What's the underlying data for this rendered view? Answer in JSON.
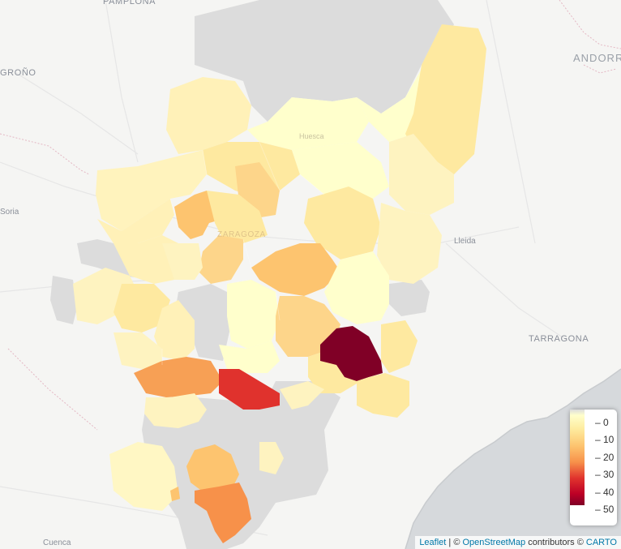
{
  "map": {
    "cities": {
      "pamplona": "PAMPLONA",
      "logrono": "GROÑO",
      "andorra": "ANDORR",
      "soria": "Soria",
      "lleida": "Lleida",
      "tarragona": "TARRAGONA",
      "cuenca": "Cuenca",
      "huesca": "Huesca",
      "zaragoza": "ZARAGOZA"
    },
    "colors": {
      "no_data": "#dcdcdc",
      "scale_0": "#ffffcc",
      "scale_10": "#fee9a0",
      "scale_20": "#fdc46f",
      "scale_30": "#f7914a",
      "scale_40": "#e0322d",
      "scale_50": "#800026"
    }
  },
  "legend": {
    "ticks": [
      "0",
      "10",
      "20",
      "30",
      "40",
      "50"
    ],
    "range": [
      0,
      55
    ]
  },
  "attribution": {
    "leaflet": "Leaflet",
    "sep": " | © ",
    "osm": "OpenStreetMap",
    "contributors": " contributors © ",
    "carto": "CARTO"
  }
}
